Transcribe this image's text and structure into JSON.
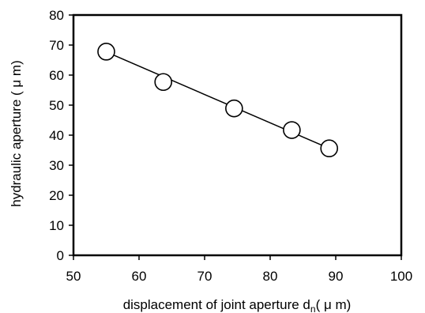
{
  "chart_data": {
    "type": "scatter",
    "xlabel": "displacement of joint aperture d",
    "xlabel_subscript": "n",
    "xlabel_unit": "( μ m)",
    "ylabel": "hydraulic aperture ( μ m)",
    "xlim": [
      50,
      100
    ],
    "ylim": [
      0,
      80
    ],
    "xticks": [
      "50",
      "60",
      "70",
      "80",
      "90",
      "100"
    ],
    "yticks": [
      "0",
      "10",
      "20",
      "30",
      "40",
      "50",
      "60",
      "70",
      "80"
    ],
    "grid": false,
    "legend": "none",
    "series": [
      {
        "points": [
          {
            "x": 55,
            "y": 67.8
          },
          {
            "x": 63.7,
            "y": 57.7
          },
          {
            "x": 74.5,
            "y": 48.9
          },
          {
            "x": 83.3,
            "y": 41.7
          },
          {
            "x": 89,
            "y": 35.6
          }
        ],
        "marker": "open-circle"
      }
    ],
    "fit_line": {
      "x": [
        55,
        89
      ],
      "y": [
        67.7,
        35.6
      ]
    },
    "colors": {
      "line": "#000000",
      "marker_stroke": "#000000",
      "marker_fill": "#ffffff"
    }
  }
}
